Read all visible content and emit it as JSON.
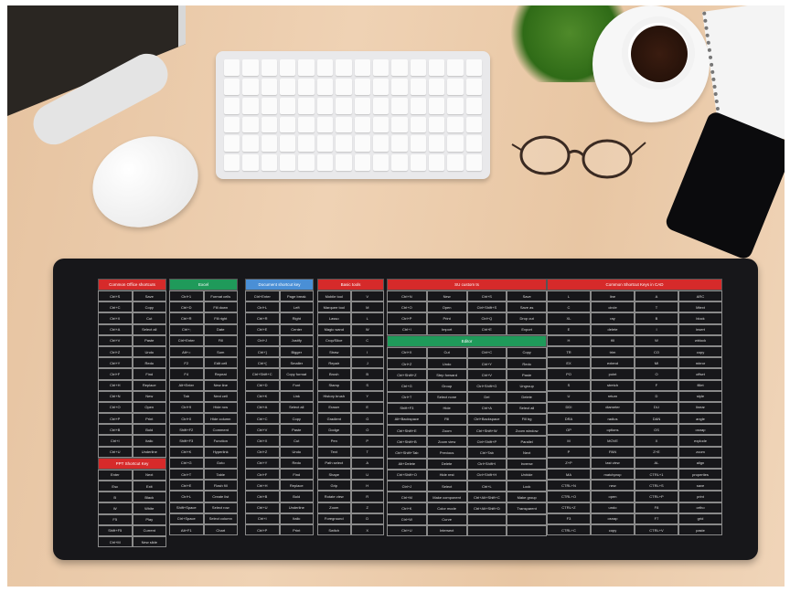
{
  "photo": "desk with shortcut-key mouse pad",
  "colors": {
    "wood": "#e9c9a6",
    "mat": "#17171a",
    "red": "#d62a2a",
    "green": "#1f9a5a",
    "blue": "#4a8fd6"
  },
  "mat": {
    "columns": [
      {
        "sections": [
          {
            "title": "Common Office shortcuts",
            "color": "red",
            "rows": [
              [
                "Ctrl+S",
                "Save"
              ],
              [
                "Ctrl+C",
                "Copy"
              ],
              [
                "Ctrl+X",
                "Cut"
              ],
              [
                "Ctrl+A",
                "Select all"
              ],
              [
                "Ctrl+V",
                "Paste"
              ],
              [
                "Ctrl+Z",
                "Undo"
              ],
              [
                "Ctrl+Y",
                "Redo"
              ],
              [
                "Ctrl+F",
                "Find"
              ],
              [
                "Ctrl+H",
                "Replace"
              ],
              [
                "Ctrl+N",
                "New"
              ],
              [
                "Ctrl+O",
                "Open"
              ],
              [
                "Ctrl+P",
                "Print"
              ],
              [
                "Ctrl+B",
                "Bold"
              ],
              [
                "Ctrl+I",
                "Italic"
              ],
              [
                "Ctrl+U",
                "Underline"
              ]
            ]
          },
          {
            "title": "PPT Shortcut Key",
            "color": "red",
            "rows": [
              [
                "Enter",
                "Next"
              ],
              [
                "Esc",
                "Exit"
              ],
              [
                "B",
                "Black"
              ],
              [
                "W",
                "White"
              ],
              [
                "F5",
                "Play"
              ],
              [
                "Shift+F5",
                "Current"
              ],
              [
                "Ctrl+M",
                "New slide"
              ]
            ]
          }
        ]
      },
      {
        "sections": [
          {
            "title": "Excel",
            "color": "green",
            "rows": [
              [
                "Ctrl+1",
                "Format cells"
              ],
              [
                "Ctrl+D",
                "Fill down"
              ],
              [
                "Ctrl+R",
                "Fill right"
              ],
              [
                "Ctrl+;",
                "Date"
              ],
              [
                "Ctrl+Enter",
                "Fill"
              ],
              [
                "Alt+=",
                "Sum"
              ],
              [
                "F2",
                "Edit cell"
              ],
              [
                "F4",
                "Repeat"
              ],
              [
                "Alt+Enter",
                "New line"
              ],
              [
                "Tab",
                "Next cell"
              ],
              [
                "Ctrl+9",
                "Hide row"
              ],
              [
                "Ctrl+0",
                "Hide column"
              ],
              [
                "Shift+F2",
                "Comment"
              ],
              [
                "Shift+F3",
                "Function"
              ],
              [
                "Ctrl+K",
                "Hyperlink"
              ],
              [
                "Ctrl+G",
                "Goto"
              ],
              [
                "Ctrl+T",
                "Table"
              ],
              [
                "Ctrl+E",
                "Flash fill"
              ],
              [
                "Ctrl+L",
                "Create list"
              ],
              [
                "Shift+Space",
                "Select row"
              ],
              [
                "Ctrl+Space",
                "Select column"
              ],
              [
                "Alt+F1",
                "Chart"
              ]
            ]
          }
        ]
      },
      {
        "sections": [
          {
            "title": "Document shortcut key",
            "color": "blue",
            "rows": [
              [
                "Ctrl+Enter",
                "Page break"
              ],
              [
                "Ctrl+L",
                "Left"
              ],
              [
                "Ctrl+R",
                "Right"
              ],
              [
                "Ctrl+E",
                "Center"
              ],
              [
                "Ctrl+J",
                "Justify"
              ],
              [
                "Ctrl+]",
                "Bigger"
              ],
              [
                "Ctrl+[",
                "Smaller"
              ],
              [
                "Ctrl+Shift+C",
                "Copy format"
              ],
              [
                "Ctrl+D",
                "Font"
              ],
              [
                "Ctrl+K",
                "Link"
              ],
              [
                "Ctrl+A",
                "Select all"
              ],
              [
                "Ctrl+C",
                "Copy"
              ],
              [
                "Ctrl+V",
                "Paste"
              ],
              [
                "Ctrl+X",
                "Cut"
              ],
              [
                "Ctrl+Z",
                "Undo"
              ],
              [
                "Ctrl+Y",
                "Redo"
              ],
              [
                "Ctrl+F",
                "Find"
              ],
              [
                "Ctrl+H",
                "Replace"
              ],
              [
                "Ctrl+B",
                "Bold"
              ],
              [
                "Ctrl+U",
                "Underline"
              ],
              [
                "Ctrl+I",
                "Italic"
              ],
              [
                "Ctrl+P",
                "Print"
              ]
            ]
          }
        ]
      },
      {
        "sections": [
          {
            "title": "Basic tools",
            "color": "red",
            "rows": [
              [
                "Mobile tool",
                "V"
              ],
              [
                "Marquee tool",
                "M"
              ],
              [
                "Lasso",
                "L"
              ],
              [
                "Magic wand",
                "W"
              ],
              [
                "Crop/Slice",
                "C"
              ],
              [
                "Straw",
                "I"
              ],
              [
                "Repair",
                "J"
              ],
              [
                "Brush",
                "B"
              ],
              [
                "Stamp",
                "S"
              ],
              [
                "History brush",
                "Y"
              ],
              [
                "Eraser",
                "E"
              ],
              [
                "Gradient",
                "G"
              ],
              [
                "Dodge",
                "O"
              ],
              [
                "Pen",
                "P"
              ],
              [
                "Text",
                "T"
              ],
              [
                "Path select",
                "A"
              ],
              [
                "Shape",
                "U"
              ],
              [
                "Grip",
                "H"
              ],
              [
                "Rotate view",
                "R"
              ],
              [
                "Zoom",
                "Z"
              ],
              [
                "Foreground",
                "D"
              ],
              [
                "Switch",
                "X"
              ]
            ]
          }
        ]
      },
      {
        "sections": [
          {
            "title": "SU custom ts",
            "color": "red",
            "rows": [
              [
                "Ctrl+N",
                "New",
                "Ctrl+S",
                "Save"
              ],
              [
                "Ctrl+O",
                "Open",
                "Ctrl+Shift+S",
                "Save as"
              ],
              [
                "Ctrl+P",
                "Print",
                "Ctrl+Q",
                "Drop out"
              ],
              [
                "Ctrl+I",
                "Import",
                "Ctrl+E",
                "Export"
              ]
            ]
          },
          {
            "title": "Editor",
            "color": "green",
            "rows": [
              [
                "Ctrl+X",
                "Cut",
                "Ctrl+C",
                "Copy"
              ],
              [
                "Ctrl+Z",
                "Undo",
                "Ctrl+Y",
                "Redo"
              ],
              [
                "Ctrl+Shift+Z",
                "Step forward",
                "Ctrl+V",
                "Paste"
              ],
              [
                "Ctrl+G",
                "Group",
                "Ctrl+Shift+G",
                "Ungroup"
              ],
              [
                "Ctrl+T",
                "Select none",
                "Del",
                "Delete"
              ],
              [
                "Shift+F3",
                "Hide",
                "Ctrl+A",
                "Select all"
              ],
              [
                "Alt+Backspace",
                "Fill",
                "Ctrl+Backspace",
                "Fill bg"
              ],
              [
                "Ctrl+Shift+E",
                "Zoom",
                "Ctrl+Shift+W",
                "Zoom window"
              ],
              [
                "Ctrl+Shift+B",
                "Zoom view",
                "Ctrl+Shift+P",
                "Parallel"
              ],
              [
                "Ctrl+Shift+Tab",
                "Previous",
                "Ctrl+Tab",
                "Next"
              ],
              [
                "Alt+Delete",
                "Delete",
                "Ctrl+Shift+I",
                "Inverse"
              ],
              [
                "Ctrl+Shift+O",
                "Hide rest",
                "Ctrl+Shift+H",
                "Unhide"
              ],
              [
                "Ctrl+J",
                "Select",
                "Ctrl+L",
                "Lock"
              ],
              [
                "Ctrl+M",
                "Make component",
                "Ctrl+Alt+Shift+C",
                "Make group"
              ],
              [
                "Ctrl+K",
                "Color mode",
                "Ctrl+Alt+Shift+D",
                "Transparent"
              ],
              [
                "Ctrl+W",
                "Curve",
                "",
                ""
              ],
              [
                "Ctrl+U",
                "Intersect",
                "",
                ""
              ]
            ]
          }
        ]
      },
      {
        "sections": [
          {
            "title": "Common Shortcut Keys in CAD",
            "color": "red",
            "rows": [
              [
                "L",
                "line",
                "A",
                "ARC"
              ],
              [
                "C",
                "circle",
                "T",
                "Mtext"
              ],
              [
                "XL",
                "ray",
                "B",
                "block"
              ],
              [
                "E",
                "delete",
                "I",
                "insert"
              ],
              [
                "H",
                "fill",
                "W",
                "wblock"
              ],
              [
                "TR",
                "trim",
                "CO",
                "copy"
              ],
              [
                "EX",
                "extend",
                "MI",
                "mirror"
              ],
              [
                "PO",
                "point",
                "O",
                "offset"
              ],
              [
                "S",
                "stretch",
                "F",
                "fillet"
              ],
              [
                "U",
                "return",
                "D",
                "style"
              ],
              [
                "DDI",
                "diameter",
                "DLI",
                "linear"
              ],
              [
                "DRA",
                "radius",
                "DAN",
                "angle"
              ],
              [
                "OP",
                "options",
                "OS",
                "osnap"
              ],
              [
                "M",
                "MOVE",
                "X",
                "explode"
              ],
              [
                "P",
                "PAN",
                "Z+E",
                "zoom"
              ],
              [
                "Z+P",
                "last view",
                "AL",
                "align"
              ],
              [
                "MA",
                "matchprop",
                "CTRL+1",
                "properties"
              ],
              [
                "CTRL+N",
                "new",
                "CTRL+S",
                "save"
              ],
              [
                "CTRL+O",
                "open",
                "CTRL+P",
                "print"
              ],
              [
                "CTRL+Z",
                "undo",
                "F8",
                "ortho"
              ],
              [
                "F3",
                "osnap",
                "F7",
                "grid"
              ],
              [
                "CTRL+C",
                "copy",
                "CTRL+V",
                "paste"
              ]
            ]
          }
        ]
      }
    ]
  }
}
